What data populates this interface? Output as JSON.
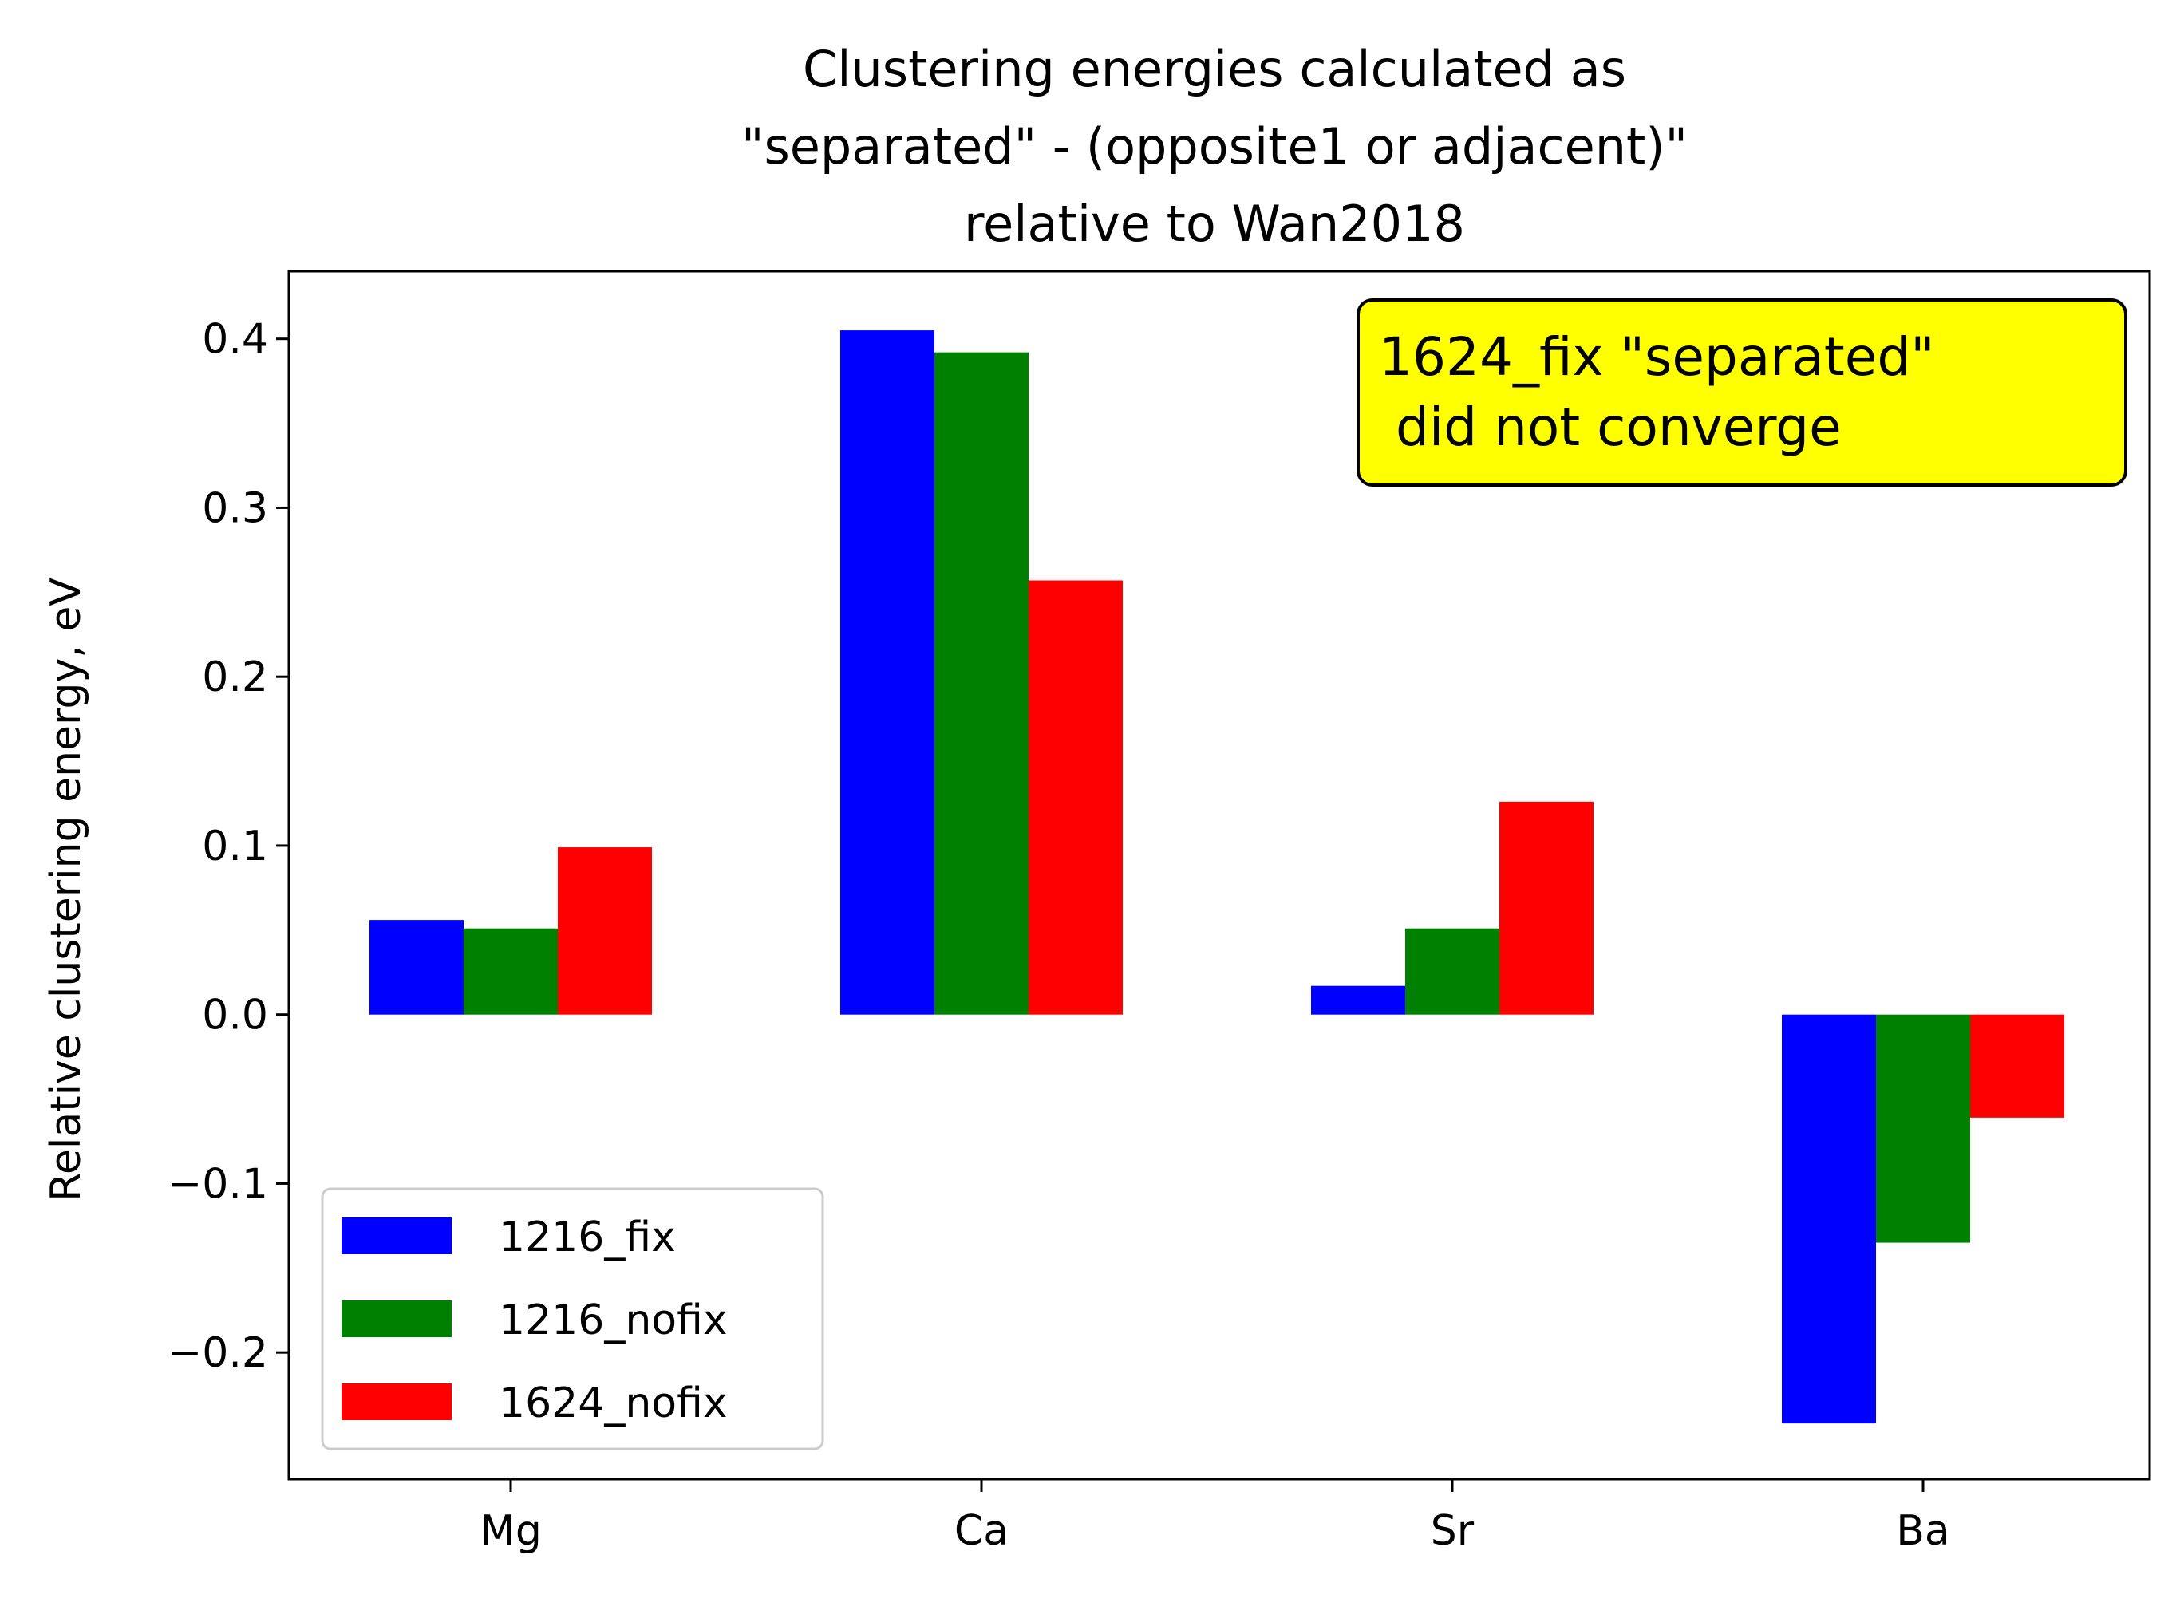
{
  "chart_data": {
    "type": "bar",
    "title_lines": [
      "Clustering energies calculated as",
      "\"separated\" - (opposite1 or adjacent)\"",
      "relative to Wan2018"
    ],
    "xlabel": "",
    "ylabel": "Relative clustering energy, eV",
    "categories": [
      "Mg",
      "Ca",
      "Sr",
      "Ba"
    ],
    "series": [
      {
        "name": "1216_fix",
        "color": "#0000ff",
        "values": [
          0.056,
          0.405,
          0.017,
          -0.242
        ]
      },
      {
        "name": "1216_nofix",
        "color": "#008000",
        "values": [
          0.051,
          0.392,
          0.051,
          -0.135
        ]
      },
      {
        "name": "1624_nofix",
        "color": "#ff0000",
        "values": [
          0.099,
          0.257,
          0.126,
          -0.061
        ]
      }
    ],
    "ylim": [
      -0.275,
      0.44
    ],
    "yticks": [
      {
        "value": -0.2,
        "label": "−0.2"
      },
      {
        "value": -0.1,
        "label": "−0.1"
      },
      {
        "value": 0.0,
        "label": "0.0"
      },
      {
        "value": 0.1,
        "label": "0.1"
      },
      {
        "value": 0.2,
        "label": "0.2"
      },
      {
        "value": 0.3,
        "label": "0.3"
      },
      {
        "value": 0.4,
        "label": "0.4"
      }
    ],
    "grid": false,
    "legend_position": "lower-left",
    "annotation": {
      "lines": [
        "1624_fix \"separated\"",
        " did not converge"
      ],
      "background": "#ffff00",
      "position": "top-right"
    }
  }
}
